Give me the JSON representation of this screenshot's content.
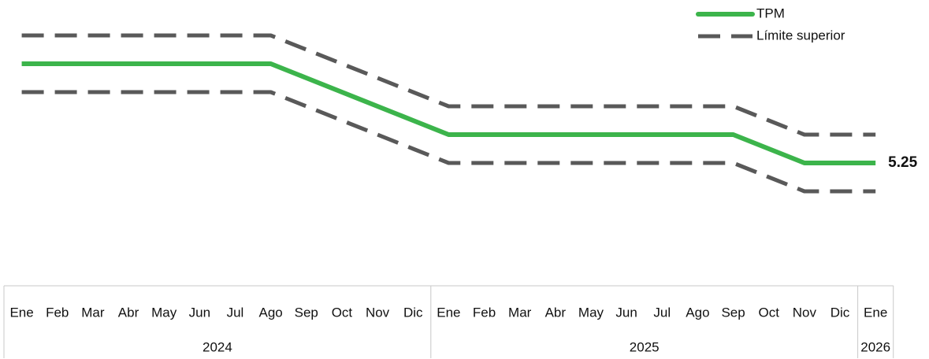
{
  "chart_data": {
    "type": "line",
    "categories": [
      "Ene",
      "Feb",
      "Mar",
      "Abr",
      "May",
      "Jun",
      "Jul",
      "Ago",
      "Sep",
      "Oct",
      "Nov",
      "Dic",
      "Ene",
      "Feb",
      "Mar",
      "Abr",
      "May",
      "Jun",
      "Jul",
      "Ago",
      "Sep",
      "Oct",
      "Nov",
      "Dic",
      "Ene"
    ],
    "year_groups": [
      {
        "label": "2024",
        "count": 12
      },
      {
        "label": "2025",
        "count": 12
      },
      {
        "label": "2026",
        "count": 1
      }
    ],
    "series": [
      {
        "name": "TPM",
        "color": "#3cb44b",
        "style": "solid",
        "values": [
          7,
          7,
          7,
          7,
          7,
          7,
          7,
          7,
          6.75,
          6.5,
          6.25,
          6,
          5.75,
          5.75,
          5.75,
          5.75,
          5.75,
          5.75,
          5.75,
          5.75,
          5.75,
          5.5,
          5.25,
          5.25,
          5.25
        ]
      },
      {
        "name": "Límite superior",
        "color": "#595959",
        "style": "dashed",
        "values": [
          7.5,
          7.5,
          7.5,
          7.5,
          7.5,
          7.5,
          7.5,
          7.5,
          7.25,
          7,
          6.75,
          6.5,
          6.25,
          6.25,
          6.25,
          6.25,
          6.25,
          6.25,
          6.25,
          6.25,
          6.25,
          6,
          5.75,
          5.75,
          5.75
        ]
      },
      {
        "color": "#595959",
        "style": "dashed",
        "values": [
          6.5,
          6.5,
          6.5,
          6.5,
          6.5,
          6.5,
          6.5,
          6.5,
          6.25,
          6,
          5.75,
          5.5,
          5.25,
          5.25,
          5.25,
          5.25,
          5.25,
          5.25,
          5.25,
          5.25,
          5.25,
          5,
          4.75,
          4.75,
          4.75
        ]
      }
    ],
    "ylim": [
      3.75,
      8.125
    ],
    "legend": "upper right"
  }
}
